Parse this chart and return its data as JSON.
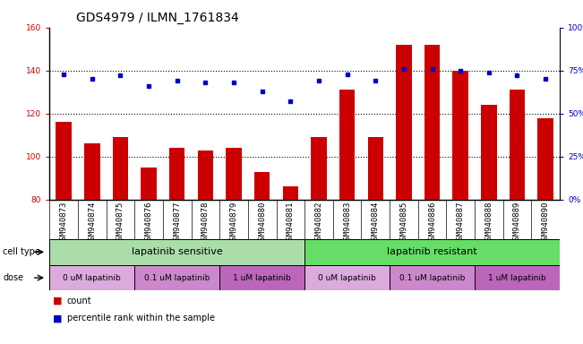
{
  "title": "GDS4979 / ILMN_1761834",
  "samples": [
    "GSM940873",
    "GSM940874",
    "GSM940875",
    "GSM940876",
    "GSM940877",
    "GSM940878",
    "GSM940879",
    "GSM940880",
    "GSM940881",
    "GSM940882",
    "GSM940883",
    "GSM940884",
    "GSM940885",
    "GSM940886",
    "GSM940887",
    "GSM940888",
    "GSM940889",
    "GSM940890"
  ],
  "counts": [
    116,
    106,
    109,
    95,
    104,
    103,
    104,
    93,
    86,
    109,
    131,
    109,
    152,
    152,
    140,
    124,
    131,
    118
  ],
  "percentiles": [
    73,
    70,
    72,
    66,
    69,
    68,
    68,
    63,
    57,
    69,
    73,
    69,
    76,
    76,
    75,
    74,
    72,
    70
  ],
  "bar_color": "#cc0000",
  "dot_color": "#0000cc",
  "ylim_left": [
    80,
    160
  ],
  "ylim_right": [
    0,
    100
  ],
  "yticks_left": [
    80,
    100,
    120,
    140,
    160
  ],
  "yticks_right": [
    0,
    25,
    50,
    75,
    100
  ],
  "ytick_labels_right": [
    "0%",
    "25%",
    "50%",
    "75%",
    "100%"
  ],
  "cell_type_sensitive": "lapatinib sensitive",
  "cell_type_resistant": "lapatinib resistant",
  "cell_type_color_sensitive": "#aaddaa",
  "cell_type_color_resistant": "#66dd66",
  "dose_colors": [
    "#ddaadd",
    "#cc88cc",
    "#bb66bb",
    "#ddaadd",
    "#cc88cc",
    "#bb66bb"
  ],
  "dose_labels": [
    "0 uM lapatinib",
    "0.1 uM lapatinib",
    "1 uM lapatinib",
    "0 uM lapatinib",
    "0.1 uM lapatinib",
    "1 uM lapatinib"
  ],
  "legend_count_color": "#cc0000",
  "legend_dot_color": "#0000cc",
  "title_fontsize": 10,
  "tick_fontsize": 6.5,
  "label_fontsize": 8,
  "xtick_bg_color": "#cccccc"
}
